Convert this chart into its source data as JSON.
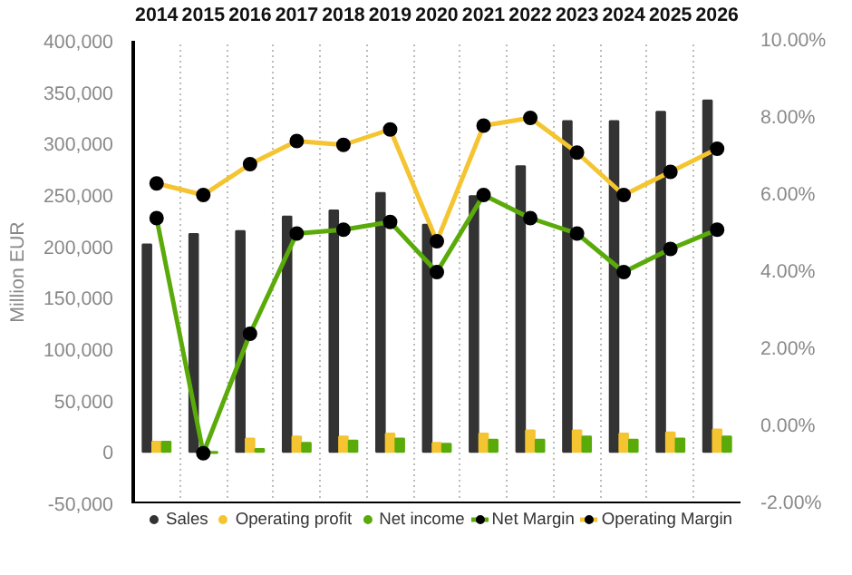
{
  "chart_data": {
    "type": "bar",
    "ylabel": "Million EUR",
    "categories": [
      "2014",
      "2015",
      "2016",
      "2017",
      "2018",
      "2019",
      "2020",
      "2021",
      "2022",
      "2023",
      "2024",
      "2025",
      "2026"
    ],
    "series": [
      {
        "name": "Sales",
        "color": "#333333",
        "values": [
          202000,
          212000,
          215000,
          229000,
          235000,
          252000,
          221000,
          249000,
          278000,
          322000,
          322000,
          331000,
          342000
        ]
      },
      {
        "name": "Operating profit",
        "color": "#f5c431",
        "values": [
          10000,
          null,
          13000,
          15000,
          15000,
          18000,
          9000,
          18000,
          21000,
          21000,
          18000,
          19000,
          22000
        ]
      },
      {
        "name": "Net income",
        "color": "#5aab0a",
        "values": [
          10000,
          -1000,
          3000,
          9000,
          11000,
          13000,
          8000,
          12000,
          12000,
          15000,
          12000,
          13000,
          15000
        ]
      },
      {
        "name": "Net Margin",
        "type": "line",
        "axis": "y2",
        "color": "#5aab0a",
        "values": [
          5.4,
          -0.7,
          2.4,
          5.0,
          5.1,
          5.3,
          4.0,
          6.0,
          5.4,
          5.0,
          4.0,
          4.6,
          5.1
        ]
      },
      {
        "name": "Operating Margin",
        "type": "line",
        "axis": "y2",
        "color": "#f5c431",
        "values": [
          6.3,
          6.0,
          6.8,
          7.4,
          7.3,
          7.7,
          4.8,
          7.8,
          8.0,
          7.1,
          6.0,
          6.6,
          7.2
        ]
      }
    ],
    "ylim": [
      -50000,
      400000
    ],
    "yticks": [
      {
        "value": -50000,
        "label": "-50,000"
      },
      {
        "value": 0,
        "label": "0"
      },
      {
        "value": 50000,
        "label": "50,000"
      },
      {
        "value": 100000,
        "label": "100,000"
      },
      {
        "value": 150000,
        "label": "150,000"
      },
      {
        "value": 200000,
        "label": "200,000"
      },
      {
        "value": 250000,
        "label": "250,000"
      },
      {
        "value": 300000,
        "label": "300,000"
      },
      {
        "value": 350000,
        "label": "350,000"
      },
      {
        "value": 400000,
        "label": "400,000"
      }
    ],
    "y2lim": [
      -2,
      10
    ],
    "y2ticks": [
      {
        "value": -2,
        "label": "-2.00%"
      },
      {
        "value": 0,
        "label": "0.00%"
      },
      {
        "value": 2,
        "label": "2.00%"
      },
      {
        "value": 4,
        "label": "4.00%"
      },
      {
        "value": 6,
        "label": "6.00%"
      },
      {
        "value": 8,
        "label": "8.00%"
      },
      {
        "value": 10,
        "label": "10.00%"
      }
    ],
    "grid": "x",
    "legend": "bottom",
    "marker": "circle",
    "line_style": "solid"
  }
}
